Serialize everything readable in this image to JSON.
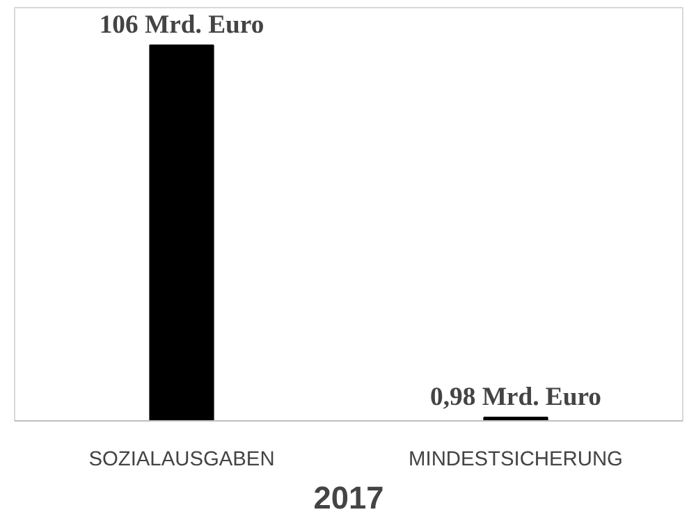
{
  "chart_data": {
    "type": "bar",
    "xlabel": "2017",
    "categories": [
      "SOZIALAUSGABEN",
      "MINDESTSICHERUNG"
    ],
    "values": [
      106,
      0.98
    ],
    "value_labels": [
      "106 Mrd. Euro",
      "0,98 Mrd. Euro"
    ],
    "color": "#000000"
  }
}
